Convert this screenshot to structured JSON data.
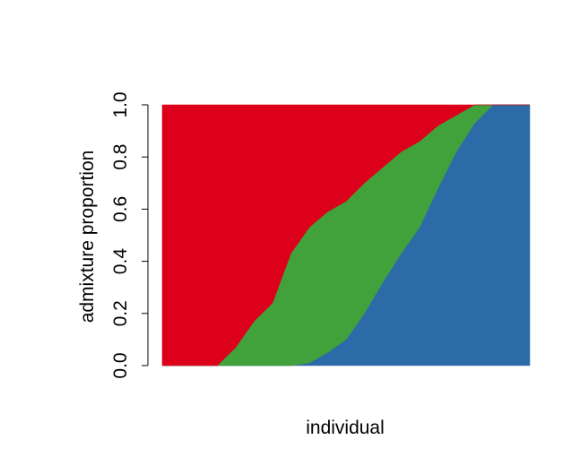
{
  "chart_data": {
    "type": "area",
    "stacked": true,
    "title": "",
    "xlabel": "individual",
    "ylabel": "admixture proportion",
    "ylim": [
      0,
      1
    ],
    "yticks": [
      "0.0",
      "0.2",
      "0.4",
      "0.6",
      "0.8",
      "1.0"
    ],
    "x_ticks_shown": false,
    "grid": false,
    "legend": "none",
    "x": [
      0.0,
      0.05,
      0.1,
      0.15,
      0.2,
      0.25,
      0.3,
      0.35,
      0.4,
      0.45,
      0.5,
      0.55,
      0.6,
      0.65,
      0.7,
      0.75,
      0.8,
      0.85,
      0.9,
      0.95,
      1.0
    ],
    "series": [
      {
        "color": "#2C6AA8",
        "values": [
          0.0,
          0.0,
          0.0,
          0.0,
          0.0,
          0.0,
          0.0,
          0.0,
          0.01,
          0.05,
          0.1,
          0.2,
          0.32,
          0.43,
          0.53,
          0.68,
          0.82,
          0.93,
          1.0,
          1.0,
          1.0
        ]
      },
      {
        "color": "#41A23B",
        "values": [
          0.0,
          0.0,
          0.0,
          0.0,
          0.07,
          0.17,
          0.24,
          0.43,
          0.52,
          0.54,
          0.53,
          0.5,
          0.44,
          0.39,
          0.33,
          0.24,
          0.14,
          0.07,
          0.0,
          0.0,
          0.0
        ]
      },
      {
        "color": "#DC001A",
        "values": [
          1.0,
          1.0,
          1.0,
          1.0,
          0.93,
          0.83,
          0.76,
          0.57,
          0.47,
          0.41,
          0.37,
          0.3,
          0.24,
          0.18,
          0.14,
          0.08,
          0.04,
          0.0,
          0.0,
          0.0,
          0.0
        ]
      }
    ]
  }
}
